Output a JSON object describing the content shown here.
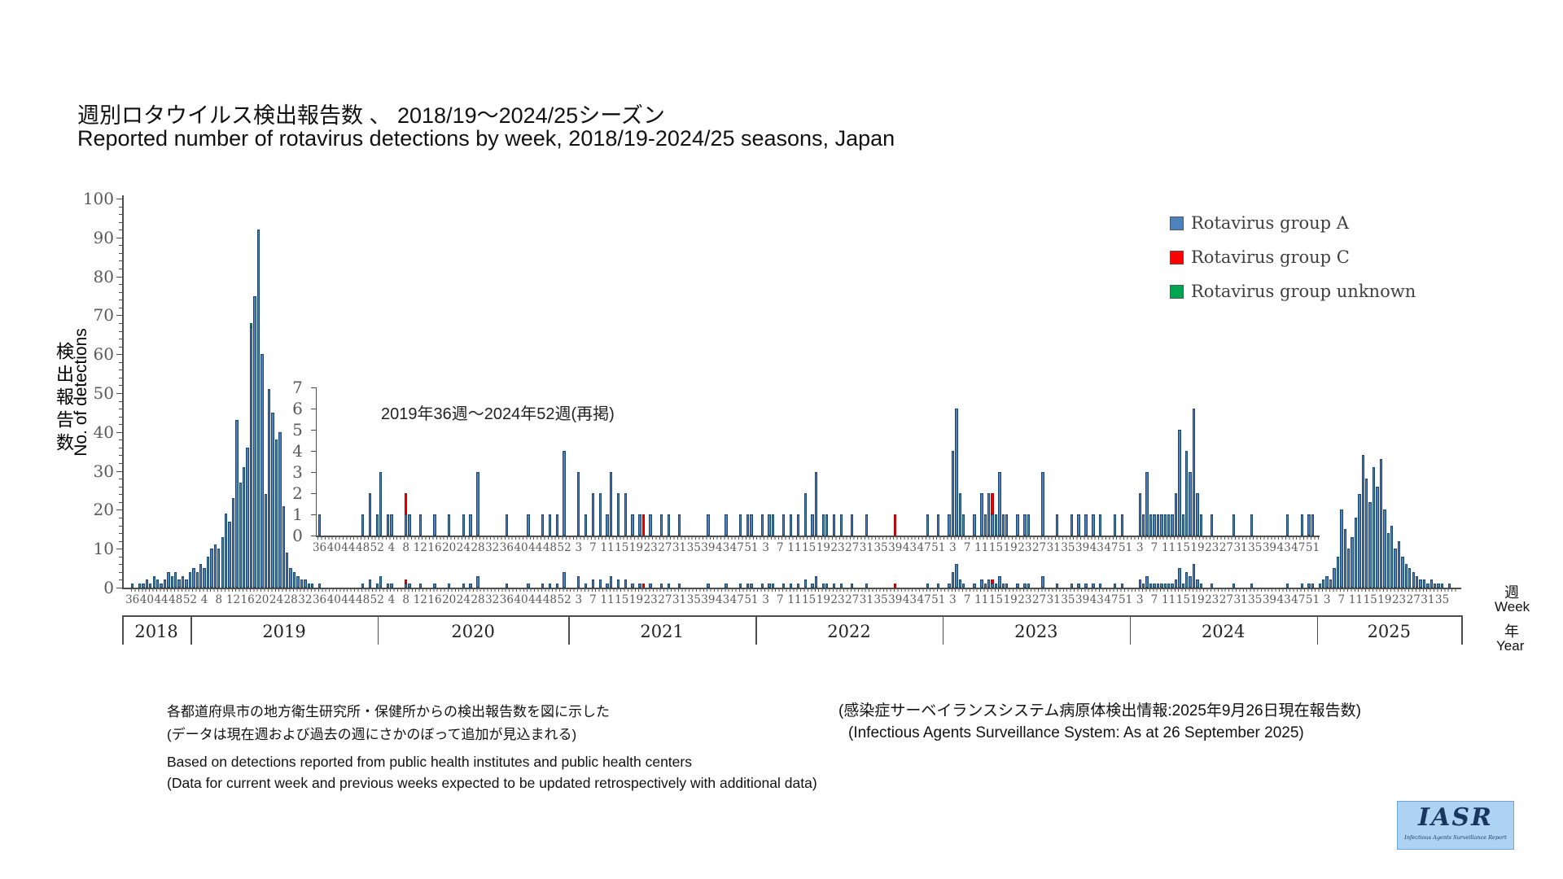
{
  "page": {
    "title_ja": "週別ロタウイルス検出報告数 、 2018/19〜2024/25シーズン",
    "title_en": "Reported number of rotavirus detections by week, 2018/19-2024/25 seasons, Japan"
  },
  "legend": {
    "items": [
      {
        "label": "Rotavirus group A",
        "color": "#4e81bd"
      },
      {
        "label": "Rotavirus group C",
        "color": "#ff0000"
      },
      {
        "label": "Rotavirus group unknown",
        "color": "#00a550"
      }
    ]
  },
  "chart_data": {
    "type": "bar",
    "title": "Reported number of rotavirus detections by week, 2018/19-2024/25 seasons, Japan",
    "ylabel_ja": "検出報告数",
    "ylabel_en": "No. of detections",
    "week_caption_ja": "週",
    "week_caption_en": "Week",
    "year_caption_ja": "年",
    "year_caption_en": "Year",
    "main_axis": {
      "max": 100,
      "tick_labels": [
        0,
        10,
        20,
        30,
        40,
        50,
        60,
        70,
        80,
        90,
        100
      ]
    },
    "inset": {
      "title": "2019年36週〜2024年52週(再掲)",
      "max": 7,
      "tick_labels": [
        0,
        1,
        2,
        3,
        4,
        5,
        6,
        7
      ],
      "range_start": {
        "year": 2019,
        "week": 36
      },
      "range_end": {
        "year": 2024,
        "week": 52
      }
    },
    "years": [
      {
        "year": 2018,
        "first_week": 36,
        "weeks": 17,
        "values": [
          1,
          0,
          1,
          1,
          2,
          1,
          3,
          2,
          1,
          2,
          4,
          3,
          4,
          2,
          3,
          2,
          4
        ]
      },
      {
        "year": 2019,
        "first_week": 1,
        "weeks": 52,
        "values": [
          5,
          4,
          6,
          5,
          8,
          10,
          11,
          10,
          13,
          19,
          17,
          23,
          43,
          27,
          31,
          36,
          67,
          75,
          92,
          60,
          24,
          51,
          45,
          38,
          40,
          21,
          9,
          5,
          4,
          3,
          2,
          2,
          1,
          1,
          0,
          1,
          0,
          0,
          0,
          0,
          0,
          0,
          0,
          0,
          0,
          0,
          0,
          1,
          0,
          2,
          0,
          1
        ]
      },
      {
        "year": 2020,
        "first_week": 1,
        "weeks": 53,
        "values": [
          3,
          0,
          1,
          1,
          0,
          0,
          0,
          1,
          1,
          0,
          0,
          1,
          0,
          0,
          0,
          1,
          0,
          0,
          0,
          1,
          0,
          0,
          0,
          1,
          0,
          1,
          0,
          3,
          0,
          0,
          0,
          0,
          0,
          0,
          0,
          1,
          0,
          0,
          0,
          0,
          0,
          1,
          0,
          0,
          0,
          1,
          0,
          1,
          0,
          1,
          0,
          4,
          0
        ]
      },
      {
        "year": 2021,
        "first_week": 1,
        "weeks": 52,
        "values": [
          0,
          0,
          3,
          0,
          1,
          0,
          2,
          0,
          2,
          0,
          1,
          3,
          0,
          2,
          0,
          2,
          0,
          1,
          0,
          1,
          0,
          0,
          1,
          0,
          0,
          1,
          0,
          1,
          0,
          0,
          1,
          0,
          0,
          0,
          0,
          0,
          0,
          0,
          1,
          0,
          0,
          0,
          0,
          1,
          0,
          0,
          0,
          1,
          0,
          1,
          1,
          0
        ]
      },
      {
        "year": 2022,
        "first_week": 1,
        "weeks": 52,
        "values": [
          0,
          1,
          0,
          1,
          1,
          0,
          0,
          1,
          0,
          1,
          0,
          1,
          0,
          2,
          0,
          1,
          3,
          0,
          1,
          1,
          0,
          1,
          0,
          1,
          0,
          0,
          1,
          0,
          0,
          0,
          1,
          0,
          0,
          0,
          0,
          0,
          0,
          0,
          0,
          0,
          0,
          0,
          0,
          0,
          0,
          0,
          0,
          1,
          0,
          0,
          1,
          0
        ]
      },
      {
        "year": 2023,
        "first_week": 1,
        "weeks": 52,
        "values": [
          0,
          1,
          4,
          6,
          2,
          1,
          0,
          0,
          1,
          0,
          2,
          1,
          2,
          1,
          1,
          3,
          1,
          1,
          0,
          0,
          1,
          0,
          1,
          1,
          0,
          0,
          0,
          3,
          0,
          0,
          0,
          1,
          0,
          0,
          0,
          1,
          0,
          1,
          0,
          1,
          0,
          1,
          0,
          1,
          0,
          0,
          0,
          1,
          0,
          1,
          0,
          0
        ]
      },
      {
        "year": 2024,
        "first_week": 1,
        "weeks": 52,
        "values": [
          0,
          0,
          2,
          1,
          3,
          1,
          1,
          1,
          1,
          1,
          1,
          1,
          2,
          5,
          1,
          4,
          3,
          6,
          2,
          1,
          0,
          0,
          1,
          0,
          0,
          0,
          0,
          0,
          1,
          0,
          0,
          0,
          0,
          1,
          0,
          0,
          0,
          0,
          0,
          0,
          0,
          0,
          0,
          1,
          0,
          0,
          0,
          1,
          0,
          1,
          1,
          0
        ]
      },
      {
        "year": 2025,
        "first_week": 1,
        "weeks": 38,
        "values": [
          1,
          2,
          3,
          2,
          5,
          8,
          20,
          15,
          10,
          13,
          18,
          24,
          34,
          28,
          22,
          31,
          26,
          33,
          20,
          14,
          16,
          10,
          12,
          8,
          6,
          5,
          4,
          3,
          2,
          2,
          1,
          2,
          1,
          1,
          1,
          0,
          1,
          0
        ]
      }
    ],
    "group_c_red": [
      {
        "year": 2020,
        "week": 8,
        "value": 1
      },
      {
        "year": 2021,
        "week": 21,
        "value": 1
      },
      {
        "year": 2022,
        "week": 39,
        "value": 1
      },
      {
        "year": 2023,
        "week": 14,
        "value": 1
      }
    ],
    "group_unknown_green": [
      {
        "year": 2019,
        "week": 17,
        "value": 1
      }
    ],
    "week_tick_labels": {
      "2018": [
        36,
        40,
        44,
        48,
        52
      ],
      "2019": [
        4,
        8,
        12,
        16,
        20,
        24,
        28,
        32,
        36,
        40,
        44,
        48,
        52
      ],
      "2020": [
        4,
        8,
        12,
        16,
        20,
        24,
        28,
        32,
        36,
        40,
        44,
        48,
        52
      ],
      "2021": [
        3,
        7,
        11,
        15,
        19,
        23,
        27,
        31,
        35,
        39,
        43,
        47,
        51
      ],
      "2022": [
        3,
        7,
        11,
        15,
        19,
        23,
        27,
        31,
        35,
        39,
        43,
        47,
        51
      ],
      "2023": [
        3,
        7,
        11,
        15,
        19,
        23,
        27,
        31,
        35,
        39,
        43,
        47,
        51
      ],
      "2024": [
        3,
        7,
        11,
        15,
        19,
        23,
        27,
        31,
        35,
        39,
        43,
        47,
        51
      ],
      "2025": [
        3,
        7,
        11,
        15,
        19,
        23,
        27,
        31,
        35
      ]
    },
    "year_labels": [
      "2018",
      "2019",
      "2020",
      "2021",
      "2022",
      "2023",
      "2024",
      "2025"
    ],
    "legend_position": "upper right",
    "grid": false
  },
  "footnotes": {
    "ja_left_1": "各都道府県市の地方衛生研究所・保健所からの検出報告数を図に示した",
    "ja_left_2": "(データは現在週および過去の週にさかのぼって追加が見込まれる)",
    "en_left_1": "Based on detections reported from public health institutes and public health centers",
    "en_left_2": "(Data for current week and previous weeks expected to be updated retrospectively with additional data)",
    "ja_right": "(感染症サーベイランスシステム病原体検出情報:2025年9月26日現在報告数)",
    "en_right": "(Infectious Agents Surveillance System: As at 26 September 2025)"
  },
  "logo": {
    "text": "IASR",
    "subtext": "Infectious Agents Surveillance Report"
  }
}
